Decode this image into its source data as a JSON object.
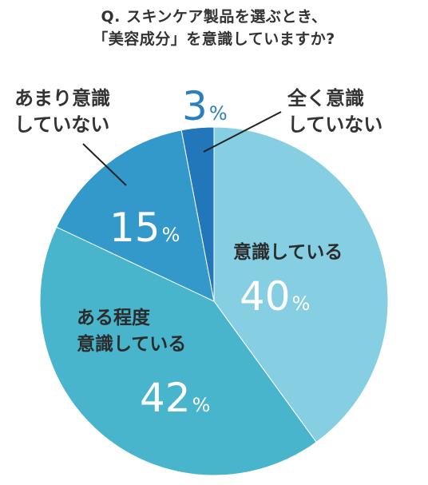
{
  "title_lines": [
    "Q. スキンケア製品を選ぶとき、",
    "「美容成分」を意識していますか?"
  ],
  "colors": {
    "s1": "#86cfe3",
    "s2": "#49b5cc",
    "s3": "#3399cb",
    "s4": "#2277bb",
    "text": "#333333",
    "white": "#ffffff"
  },
  "chart_data": {
    "type": "pie",
    "title": "Q. スキンケア製品を選ぶとき、「美容成分」を意識していますか?",
    "unit": "%",
    "slices": [
      {
        "label_lines": [
          "意識している"
        ],
        "value": 40,
        "value_text": "40",
        "unit": "%"
      },
      {
        "label_lines": [
          "ある程度",
          "意識している"
        ],
        "value": 42,
        "value_text": "42",
        "unit": "%"
      },
      {
        "label_lines": [
          "あまり意識",
          "していない"
        ],
        "value": 15,
        "value_text": "15",
        "unit": "%"
      },
      {
        "label_lines": [
          "全く意識",
          "していない"
        ],
        "value": 3,
        "value_text": "3",
        "unit": "%"
      }
    ]
  }
}
